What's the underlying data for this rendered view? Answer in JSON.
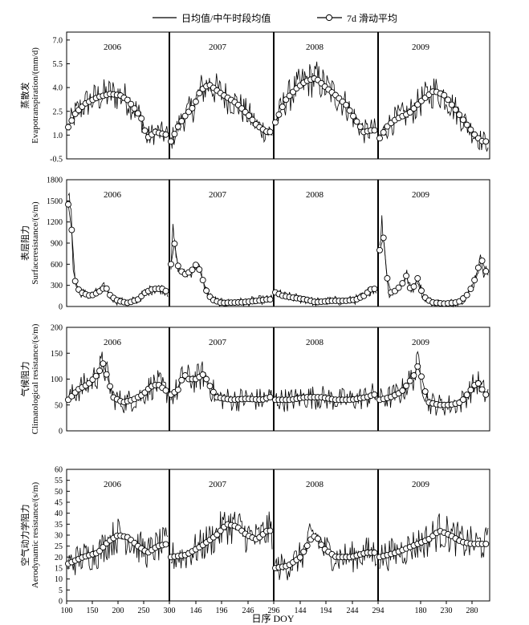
{
  "legend": {
    "daily_label": "日均值/中午时段均值",
    "smooth_label": "7d 滑动平均"
  },
  "xlabel": "日序 DOY",
  "x_ticks": [
    "100",
    "150",
    "200",
    "250",
    "300",
    "146",
    "196",
    "246",
    "296",
    "144",
    "194",
    "244",
    "294",
    "180",
    "230",
    "280"
  ],
  "years": [
    "2006",
    "2007",
    "2008",
    "2009"
  ],
  "chart_data": [
    {
      "type": "line",
      "title": "",
      "ylabel_zh": "蒸散发",
      "ylabel_en": "Evapotranspiration/(mm/d)",
      "ylim": [
        -0.5,
        7.5
      ],
      "yticks": [
        -0.5,
        1.0,
        2.5,
        4.0,
        5.5,
        7.0
      ],
      "ytick_labels": [
        "-0.5",
        "1.0",
        "2.5",
        "4.0",
        "5.5",
        "7.0"
      ],
      "years": [
        "2006",
        "2007",
        "2008",
        "2009"
      ],
      "series": [
        {
          "name": "日均值/中午时段均值",
          "values": []
        },
        {
          "name": "7d 滑动平均",
          "values": []
        }
      ],
      "smooth_profile": {
        "2006": [
          [
            100,
            1.5
          ],
          [
            115,
            2.4
          ],
          [
            135,
            3.0
          ],
          [
            160,
            3.4
          ],
          [
            185,
            3.6
          ],
          [
            205,
            3.5
          ],
          [
            220,
            3.2
          ],
          [
            235,
            2.6
          ],
          [
            248,
            2.0
          ],
          [
            258,
            0.8
          ],
          [
            275,
            1.2
          ],
          [
            300,
            1.0
          ]
        ],
        "2007": [
          [
            100,
            0.6
          ],
          [
            115,
            1.6
          ],
          [
            130,
            2.3
          ],
          [
            145,
            2.8
          ],
          [
            158,
            3.8
          ],
          [
            175,
            4.2
          ],
          [
            200,
            3.6
          ],
          [
            230,
            3.0
          ],
          [
            255,
            2.2
          ],
          [
            270,
            1.6
          ],
          [
            290,
            1.2
          ]
        ],
        "2008": [
          [
            100,
            1.8
          ],
          [
            120,
            3.2
          ],
          [
            140,
            3.9
          ],
          [
            160,
            4.4
          ],
          [
            180,
            4.6
          ],
          [
            200,
            4.0
          ],
          [
            220,
            3.5
          ],
          [
            240,
            2.9
          ],
          [
            260,
            1.9
          ],
          [
            275,
            1.2
          ],
          [
            290,
            1.3
          ]
        ],
        "2009": [
          [
            100,
            0.8
          ],
          [
            115,
            1.6
          ],
          [
            130,
            2.0
          ],
          [
            155,
            2.4
          ],
          [
            175,
            3.1
          ],
          [
            200,
            3.8
          ],
          [
            220,
            3.5
          ],
          [
            240,
            2.6
          ],
          [
            262,
            1.6
          ],
          [
            278,
            0.9
          ],
          [
            290,
            0.6
          ]
        ]
      }
    },
    {
      "type": "line",
      "title": "",
      "ylabel_zh": "表层阻力",
      "ylabel_en": "Surfaceresistance/(s/m)",
      "ylim": [
        0,
        1800
      ],
      "yticks": [
        0,
        300,
        600,
        900,
        1200,
        1500,
        1800
      ],
      "ytick_labels": [
        "0",
        "300",
        "600",
        "900",
        "1200",
        "1500",
        "1800"
      ],
      "years": [
        "2006",
        "2007",
        "2008",
        "2009"
      ],
      "series": [
        {
          "name": "日均值/中午时段均值",
          "values": []
        },
        {
          "name": "7d 滑动平均",
          "values": []
        }
      ],
      "smooth_profile": {
        "2006": [
          [
            100,
            1450
          ],
          [
            103,
            1550
          ],
          [
            106,
            1250
          ],
          [
            110,
            600
          ],
          [
            115,
            300
          ],
          [
            125,
            200
          ],
          [
            145,
            150
          ],
          [
            160,
            200
          ],
          [
            175,
            280
          ],
          [
            185,
            150
          ],
          [
            200,
            80
          ],
          [
            220,
            50
          ],
          [
            240,
            100
          ],
          [
            255,
            200
          ],
          [
            270,
            250
          ],
          [
            290,
            250
          ],
          [
            300,
            200
          ]
        ],
        "2007": [
          [
            100,
            600
          ],
          [
            103,
            1100
          ],
          [
            106,
            950
          ],
          [
            112,
            600
          ],
          [
            125,
            450
          ],
          [
            140,
            500
          ],
          [
            150,
            600
          ],
          [
            158,
            500
          ],
          [
            168,
            250
          ],
          [
            180,
            100
          ],
          [
            200,
            50
          ],
          [
            240,
            60
          ],
          [
            270,
            80
          ],
          [
            290,
            100
          ]
        ],
        "2008": [
          [
            100,
            200
          ],
          [
            115,
            150
          ],
          [
            140,
            120
          ],
          [
            160,
            100
          ],
          [
            180,
            60
          ],
          [
            210,
            80
          ],
          [
            240,
            80
          ],
          [
            260,
            100
          ],
          [
            275,
            150
          ],
          [
            290,
            250
          ]
        ],
        "2009": [
          [
            100,
            800
          ],
          [
            104,
            1200
          ],
          [
            108,
            900
          ],
          [
            112,
            600
          ],
          [
            116,
            200
          ],
          [
            125,
            200
          ],
          [
            140,
            300
          ],
          [
            150,
            450
          ],
          [
            158,
            200
          ],
          [
            170,
            400
          ],
          [
            180,
            150
          ],
          [
            195,
            60
          ],
          [
            220,
            40
          ],
          [
            245,
            60
          ],
          [
            260,
            150
          ],
          [
            272,
            300
          ],
          [
            282,
            550
          ],
          [
            288,
            700
          ],
          [
            292,
            500
          ]
        ]
      }
    },
    {
      "type": "line",
      "title": "",
      "ylabel_zh": "气候阻力",
      "ylabel_en": "Climatological resistance/(s/m)",
      "ylim": [
        0,
        200
      ],
      "yticks": [
        0,
        50,
        100,
        150,
        200
      ],
      "ytick_labels": [
        "0",
        "50",
        "100",
        "150",
        "200"
      ],
      "years": [
        "2006",
        "2007",
        "2008",
        "2009"
      ],
      "series": [
        {
          "name": "日均值/中午时段均值",
          "values": []
        },
        {
          "name": "7d 滑动平均",
          "values": []
        }
      ],
      "smooth_profile": {
        "2006": [
          [
            100,
            60
          ],
          [
            120,
            80
          ],
          [
            140,
            90
          ],
          [
            160,
            110
          ],
          [
            170,
            130
          ],
          [
            180,
            100
          ],
          [
            190,
            65
          ],
          [
            210,
            55
          ],
          [
            230,
            60
          ],
          [
            250,
            70
          ],
          [
            265,
            85
          ],
          [
            280,
            90
          ],
          [
            300,
            75
          ]
        ],
        "2007": [
          [
            100,
            70
          ],
          [
            115,
            80
          ],
          [
            125,
            110
          ],
          [
            135,
            100
          ],
          [
            150,
            100
          ],
          [
            165,
            110
          ],
          [
            175,
            90
          ],
          [
            190,
            65
          ],
          [
            220,
            60
          ],
          [
            250,
            62
          ],
          [
            280,
            60
          ],
          [
            295,
            65
          ]
        ],
        "2008": [
          [
            100,
            60
          ],
          [
            130,
            60
          ],
          [
            160,
            65
          ],
          [
            190,
            65
          ],
          [
            220,
            60
          ],
          [
            250,
            60
          ],
          [
            280,
            65
          ],
          [
            295,
            70
          ]
        ],
        "2009": [
          [
            100,
            60
          ],
          [
            120,
            65
          ],
          [
            140,
            75
          ],
          [
            155,
            95
          ],
          [
            165,
            110
          ],
          [
            172,
            130
          ],
          [
            180,
            90
          ],
          [
            190,
            55
          ],
          [
            210,
            50
          ],
          [
            230,
            50
          ],
          [
            250,
            55
          ],
          [
            265,
            75
          ],
          [
            280,
            95
          ],
          [
            295,
            70
          ]
        ]
      }
    },
    {
      "type": "line",
      "title": "",
      "ylabel_zh": "空气动力学阻力",
      "ylabel_en": "Aerodynamic resistance/(s/m)",
      "ylim": [
        0,
        60
      ],
      "yticks": [
        0,
        5,
        10,
        15,
        20,
        25,
        30,
        35,
        40,
        45,
        50,
        55,
        60
      ],
      "ytick_labels": [
        "0",
        "5",
        "10",
        "15",
        "20",
        "25",
        "30",
        "35",
        "40",
        "45",
        "50",
        "55",
        "60"
      ],
      "years": [
        "2006",
        "2007",
        "2008",
        "2009"
      ],
      "series": [
        {
          "name": "日均值/中午时段均值",
          "values": []
        },
        {
          "name": "7d 滑动平均",
          "values": []
        }
      ],
      "smooth_profile": {
        "2006": [
          [
            100,
            17
          ],
          [
            130,
            20
          ],
          [
            160,
            22
          ],
          [
            180,
            27
          ],
          [
            200,
            30
          ],
          [
            220,
            29
          ],
          [
            240,
            25
          ],
          [
            260,
            22
          ],
          [
            280,
            25
          ],
          [
            300,
            26
          ]
        ],
        "2007": [
          [
            100,
            20
          ],
          [
            130,
            21
          ],
          [
            160,
            25
          ],
          [
            190,
            30
          ],
          [
            210,
            35
          ],
          [
            230,
            34
          ],
          [
            250,
            30
          ],
          [
            270,
            28
          ],
          [
            290,
            32
          ]
        ],
        "2008": [
          [
            100,
            15
          ],
          [
            125,
            16
          ],
          [
            150,
            20
          ],
          [
            170,
            28
          ],
          [
            180,
            30
          ],
          [
            195,
            24
          ],
          [
            220,
            20
          ],
          [
            250,
            20
          ],
          [
            280,
            22
          ],
          [
            295,
            22
          ]
        ],
        "2009": [
          [
            100,
            20
          ],
          [
            130,
            22
          ],
          [
            160,
            25
          ],
          [
            190,
            28
          ],
          [
            210,
            32
          ],
          [
            230,
            30
          ],
          [
            250,
            27
          ],
          [
            270,
            26
          ],
          [
            290,
            26
          ]
        ]
      }
    }
  ]
}
